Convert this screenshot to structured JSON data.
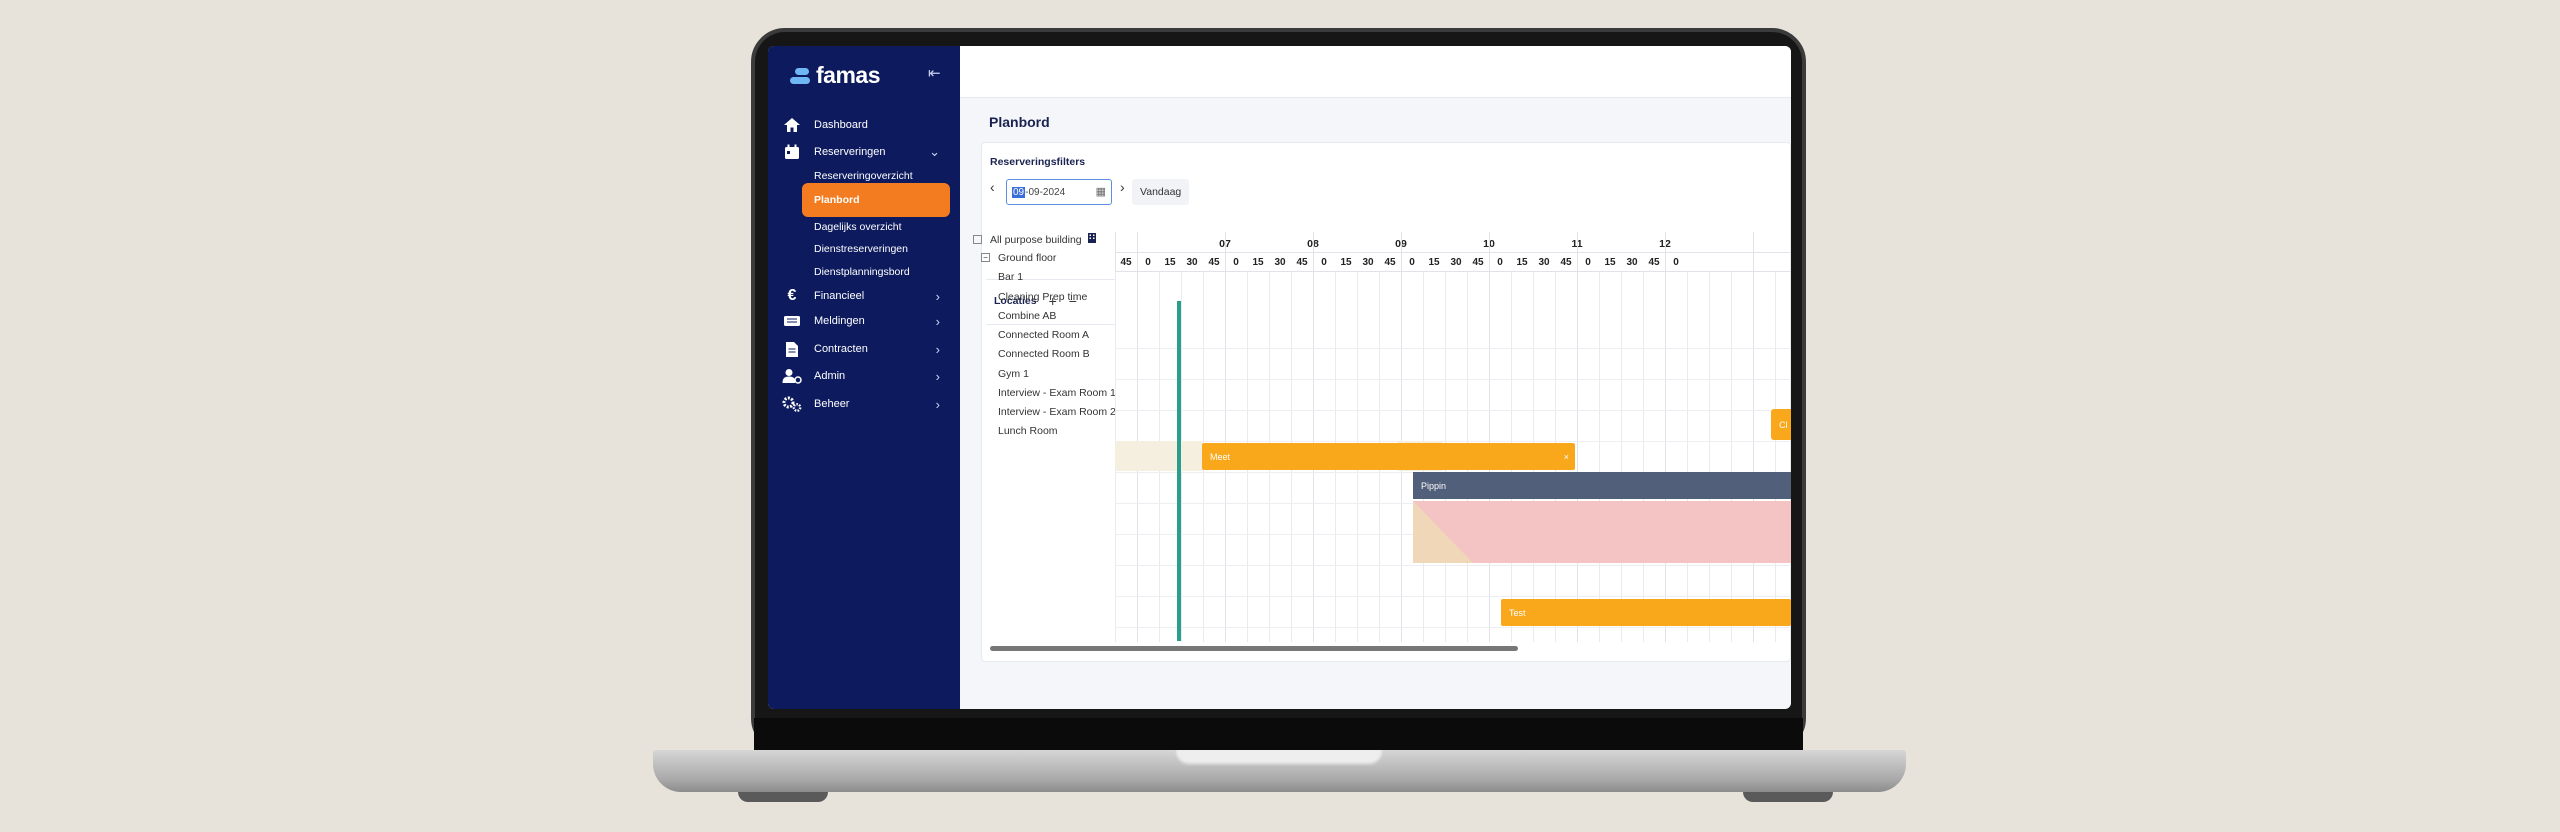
{
  "brand": {
    "name": "famas"
  },
  "sidebar": {
    "items": [
      {
        "label": "Dashboard",
        "icon": "home-icon"
      },
      {
        "label": "Reserveringen",
        "icon": "calendar-icon",
        "expanded": true
      },
      {
        "label": "Financieel",
        "icon": "euro-icon"
      },
      {
        "label": "Meldingen",
        "icon": "ticket-icon"
      },
      {
        "label": "Contracten",
        "icon": "contract-icon"
      },
      {
        "label": "Admin",
        "icon": "admin-user-icon"
      },
      {
        "label": "Beheer",
        "icon": "gears-icon"
      }
    ],
    "subitems": [
      {
        "label": "Reserveringoverzicht"
      },
      {
        "label": "Planbord",
        "active": true
      },
      {
        "label": "Dagelijks overzicht"
      },
      {
        "label": "Dienstreserveringen"
      },
      {
        "label": "Dienstplanningsbord"
      }
    ]
  },
  "main": {
    "title": "Planbord",
    "filters": {
      "title": "Reserveringsfilters",
      "date_selected": "09",
      "date_rest": "-09-2024",
      "today_label": "Vandaag"
    }
  },
  "planner": {
    "locations_label": "Locaties",
    "hours": [
      "07",
      "08",
      "09",
      "10",
      "11",
      "12"
    ],
    "minutes": [
      "45",
      "0",
      "15",
      "30",
      "45",
      "0",
      "15",
      "30",
      "45",
      "0",
      "15",
      "30",
      "45",
      "0",
      "15",
      "30",
      "45",
      "0",
      "15",
      "30",
      "45",
      "0",
      "15",
      "30",
      "45",
      "0"
    ],
    "resources": [
      {
        "label": "All purpose building",
        "level": 0
      },
      {
        "label": "Ground floor",
        "level": 1
      },
      {
        "label": "Bar 1",
        "level": 2
      },
      {
        "label": "Cleaning Prep time",
        "level": 2
      },
      {
        "label": "Combine AB",
        "level": 2
      },
      {
        "label": "Connected Room A",
        "level": 2
      },
      {
        "label": "Connected Room B",
        "level": 2
      },
      {
        "label": "Gym 1",
        "level": 2
      },
      {
        "label": "Interview - Exam Room 1",
        "level": 2
      },
      {
        "label": "Interview - Exam Room 2",
        "level": 2
      },
      {
        "label": "Lunch Room",
        "level": 2
      }
    ],
    "events": [
      {
        "label": "Cl",
        "color": "#f9a71b"
      },
      {
        "label": "Meet",
        "color": "#f9a71b"
      },
      {
        "label": "Pippin",
        "color": "#525f7a"
      },
      {
        "label": "Test",
        "color": "#f9a71b"
      }
    ]
  }
}
